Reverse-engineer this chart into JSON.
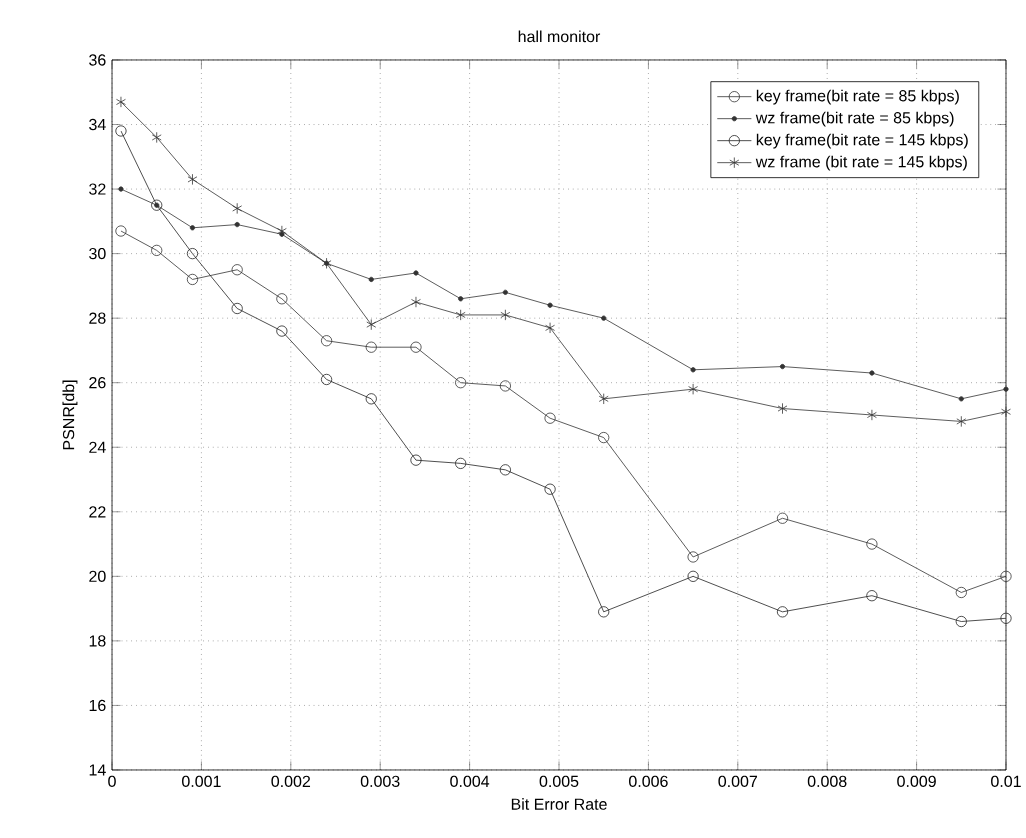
{
  "chart_data": {
    "type": "line",
    "title": "hall monitor",
    "xlabel": "Bit Error Rate",
    "ylabel": "PSNR[db]",
    "x": [
      0.0001,
      0.0005,
      0.0009,
      0.0014,
      0.0019,
      0.0024,
      0.0029,
      0.0034,
      0.0039,
      0.0044,
      0.0049,
      0.0055,
      0.0065,
      0.0075,
      0.0085,
      0.0095,
      0.01
    ],
    "series": [
      {
        "name": "key frame(bit rate = 85 kbps)",
        "color": "#333333",
        "marker": "circle",
        "values": [
          30.7,
          30.1,
          29.2,
          29.5,
          28.6,
          27.3,
          27.1,
          27.1,
          26.0,
          25.9,
          24.9,
          24.3,
          20.6,
          21.8,
          21.0,
          19.5,
          20.0
        ]
      },
      {
        "name": "wz frame(bit rate = 85 kbps)",
        "color": "#333333",
        "marker": "diamond",
        "values": [
          32.0,
          31.5,
          30.8,
          30.9,
          30.6,
          29.7,
          29.2,
          29.4,
          28.6,
          28.8,
          28.4,
          28.0,
          26.4,
          26.5,
          26.3,
          25.5,
          25.8
        ]
      },
      {
        "name": "key frame(bit rate = 145 kbps)",
        "color": "#222222",
        "marker": "circle",
        "values": [
          33.8,
          31.5,
          30.0,
          28.3,
          27.6,
          26.1,
          25.5,
          23.6,
          23.5,
          23.3,
          22.7,
          18.9,
          20.0,
          18.9,
          19.4,
          18.6,
          18.7
        ]
      },
      {
        "name": "wz frame (bit rate = 145 kbps)",
        "color": "#333333",
        "marker": "cross",
        "values": [
          34.7,
          33.6,
          32.3,
          31.4,
          30.7,
          29.7,
          27.8,
          28.5,
          28.1,
          28.1,
          27.7,
          25.5,
          25.8,
          25.2,
          25.0,
          24.8,
          25.1
        ]
      }
    ],
    "xlim": [
      0,
      0.01
    ],
    "xticks": [
      0,
      0.001,
      0.002,
      0.003,
      0.004,
      0.005,
      0.006,
      0.007,
      0.008,
      0.009,
      0.01
    ],
    "ylim": [
      14,
      36
    ],
    "yticks": [
      14,
      16,
      18,
      20,
      22,
      24,
      26,
      28,
      30,
      32,
      34,
      36
    ],
    "grid": true,
    "legend": "top right",
    "line_style": "solid"
  }
}
